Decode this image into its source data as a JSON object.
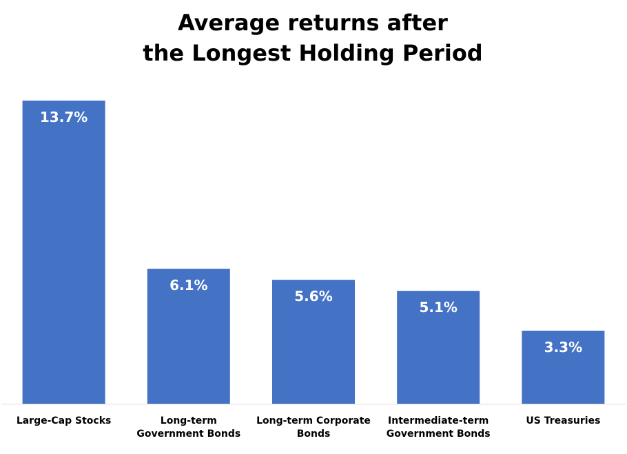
{
  "chart_data": {
    "type": "bar",
    "title_lines": [
      "Average returns after",
      "the Longest Holding Period"
    ],
    "categories": [
      [
        "Large-Cap Stocks"
      ],
      [
        "Long-term",
        "Government Bonds"
      ],
      [
        "Long-term Corporate",
        "Bonds"
      ],
      [
        "Intermediate-term",
        "Government Bonds"
      ],
      [
        "US Treasuries"
      ]
    ],
    "values": [
      13.7,
      6.1,
      5.6,
      5.1,
      3.3
    ],
    "data_labels": [
      "13.7%",
      "6.1%",
      "5.6%",
      "5.1%",
      "3.3%"
    ],
    "ylim": [
      0,
      13.7
    ],
    "grid": false,
    "legend": "none",
    "bar_color": "#4472C4",
    "label_color": "#FFFFFF",
    "baseline_color": "#D9D9D9"
  }
}
